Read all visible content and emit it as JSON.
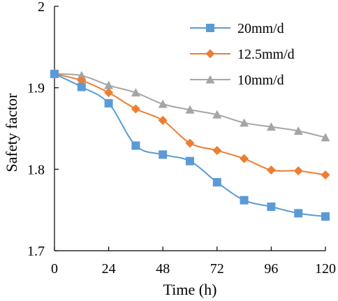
{
  "chart_data": {
    "type": "line",
    "xlabel": "Time (h)",
    "ylabel": "Safety factor",
    "xlim": [
      0,
      120
    ],
    "ylim": [
      1.7,
      2.0
    ],
    "x_ticks": [
      0,
      24,
      48,
      72,
      96,
      120
    ],
    "y_ticks": [
      1.7,
      1.8,
      1.9,
      2.0
    ],
    "y_tick_labels": [
      "1.7",
      "1.8",
      "1.9",
      "2"
    ],
    "grid": false,
    "legend_position": "top-right",
    "series": [
      {
        "name": "20mm/d",
        "color": "#5b9bd5",
        "marker": "square",
        "x": [
          0,
          12,
          24,
          36,
          48,
          60,
          72,
          84,
          96,
          108,
          120
        ],
        "y": [
          1.917,
          1.901,
          1.881,
          1.829,
          1.818,
          1.81,
          1.784,
          1.762,
          1.754,
          1.746,
          1.742
        ]
      },
      {
        "name": "12.5mm/d",
        "color": "#ed7d31",
        "marker": "diamond",
        "x": [
          0,
          12,
          24,
          36,
          48,
          60,
          72,
          84,
          96,
          108,
          120
        ],
        "y": [
          1.917,
          1.909,
          1.894,
          1.874,
          1.86,
          1.832,
          1.823,
          1.813,
          1.799,
          1.798,
          1.793
        ]
      },
      {
        "name": "10mm/d",
        "color": "#a5a5a5",
        "marker": "triangle",
        "x": [
          0,
          12,
          24,
          36,
          48,
          60,
          72,
          84,
          96,
          108,
          120
        ],
        "y": [
          1.917,
          1.915,
          1.903,
          1.894,
          1.88,
          1.873,
          1.867,
          1.857,
          1.852,
          1.847,
          1.839
        ]
      }
    ]
  }
}
